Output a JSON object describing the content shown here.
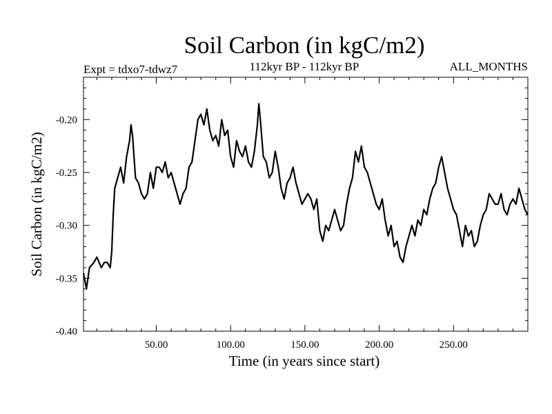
{
  "chart_data": {
    "type": "line",
    "title": "Soil Carbon (in kgC/m2)",
    "subtitle_left": "Expt = tdxo7-tdwz7",
    "subtitle_center": "112kyr BP - 112kyr BP",
    "subtitle_right": "ALL_MONTHS",
    "xlabel": "Time (in years since start)",
    "ylabel": "Soil Carbon (in kgC/m2)",
    "xlim": [
      1,
      300
    ],
    "ylim": [
      -0.4,
      -0.16
    ],
    "x_ticks": [
      50,
      100,
      150,
      200,
      250
    ],
    "x_tick_labels": [
      "50.00",
      "100.00",
      "150.00",
      "200.00",
      "250.00"
    ],
    "y_ticks": [
      -0.4,
      -0.35,
      -0.3,
      -0.25,
      -0.2
    ],
    "y_tick_labels": [
      "-0.40",
      "-0.35",
      "-0.30",
      "-0.25",
      "-0.20"
    ],
    "grid": false,
    "line_color": "#000000",
    "series": [
      {
        "x": [
          1,
          3,
          5,
          8,
          10,
          13,
          15,
          17,
          19,
          20,
          21,
          22,
          24,
          26,
          28,
          30,
          32,
          33,
          34,
          36,
          38,
          40,
          42,
          44,
          46,
          48,
          50,
          52,
          54,
          56,
          58,
          60,
          62,
          64,
          66,
          68,
          70,
          72,
          74,
          76,
          78,
          80,
          82,
          84,
          86,
          88,
          90,
          92,
          94,
          96,
          98,
          100,
          102,
          104,
          106,
          108,
          110,
          112,
          114,
          116,
          118,
          119,
          120,
          122,
          124,
          126,
          128,
          130,
          132,
          134,
          136,
          138,
          140,
          142,
          144,
          146,
          148,
          150,
          152,
          154,
          156,
          158,
          160,
          162,
          164,
          166,
          168,
          170,
          172,
          174,
          176,
          178,
          180,
          182,
          184,
          186,
          188,
          190,
          192,
          194,
          196,
          198,
          200,
          202,
          204,
          206,
          208,
          210,
          212,
          214,
          216,
          218,
          220,
          222,
          224,
          226,
          228,
          230,
          232,
          234,
          236,
          238,
          240,
          242,
          244,
          246,
          248,
          250,
          252,
          254,
          256,
          258,
          260,
          262,
          264,
          266,
          268,
          270,
          272,
          274,
          276,
          278,
          280,
          282,
          284,
          286,
          288,
          290,
          292,
          294,
          296,
          298,
          300
        ],
        "values": [
          -0.345,
          -0.36,
          -0.34,
          -0.335,
          -0.33,
          -0.34,
          -0.335,
          -0.335,
          -0.34,
          -0.325,
          -0.29,
          -0.265,
          -0.255,
          -0.245,
          -0.26,
          -0.235,
          -0.22,
          -0.205,
          -0.215,
          -0.255,
          -0.26,
          -0.27,
          -0.275,
          -0.27,
          -0.25,
          -0.265,
          -0.245,
          -0.245,
          -0.25,
          -0.24,
          -0.255,
          -0.25,
          -0.26,
          -0.27,
          -0.28,
          -0.27,
          -0.265,
          -0.245,
          -0.24,
          -0.22,
          -0.2,
          -0.195,
          -0.205,
          -0.19,
          -0.21,
          -0.22,
          -0.215,
          -0.225,
          -0.2,
          -0.215,
          -0.21,
          -0.235,
          -0.245,
          -0.22,
          -0.23,
          -0.235,
          -0.225,
          -0.24,
          -0.245,
          -0.23,
          -0.205,
          -0.185,
          -0.2,
          -0.235,
          -0.24,
          -0.255,
          -0.25,
          -0.23,
          -0.245,
          -0.265,
          -0.275,
          -0.26,
          -0.255,
          -0.245,
          -0.26,
          -0.27,
          -0.28,
          -0.275,
          -0.27,
          -0.275,
          -0.285,
          -0.275,
          -0.305,
          -0.315,
          -0.3,
          -0.305,
          -0.295,
          -0.285,
          -0.295,
          -0.305,
          -0.3,
          -0.28,
          -0.265,
          -0.255,
          -0.23,
          -0.24,
          -0.225,
          -0.245,
          -0.25,
          -0.26,
          -0.27,
          -0.28,
          -0.285,
          -0.275,
          -0.295,
          -0.31,
          -0.3,
          -0.32,
          -0.315,
          -0.33,
          -0.335,
          -0.32,
          -0.31,
          -0.3,
          -0.31,
          -0.295,
          -0.3,
          -0.285,
          -0.29,
          -0.275,
          -0.265,
          -0.26,
          -0.245,
          -0.235,
          -0.25,
          -0.265,
          -0.275,
          -0.285,
          -0.29,
          -0.305,
          -0.32,
          -0.3,
          -0.31,
          -0.305,
          -0.32,
          -0.315,
          -0.3,
          -0.29,
          -0.285,
          -0.27,
          -0.275,
          -0.28,
          -0.28,
          -0.27,
          -0.285,
          -0.29,
          -0.28,
          -0.275,
          -0.28,
          -0.265,
          -0.275,
          -0.285,
          -0.29
        ]
      }
    ]
  }
}
